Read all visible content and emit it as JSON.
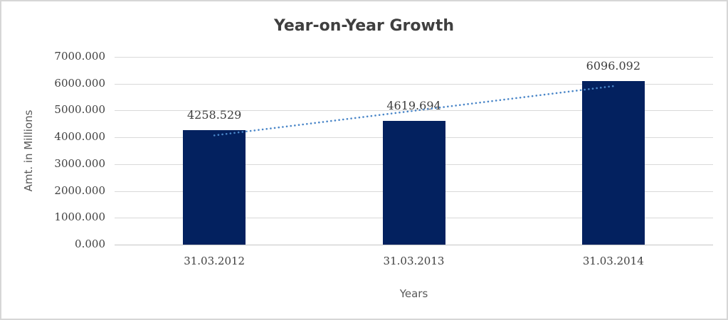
{
  "window": {
    "background": "#ffffff",
    "border_color": "#d6d6d6"
  },
  "chart_data": {
    "type": "bar",
    "title": "Year-on-Year Growth",
    "categories": [
      "31.03.2012",
      "31.03.2013",
      "31.03.2014"
    ],
    "values": [
      4258.529,
      4619.694,
      6096.092
    ],
    "data_labels": [
      "4258.529",
      "4619.694",
      "6096.092"
    ],
    "xlabel": "Years",
    "ylabel": "Amt. in Millions",
    "ylim": [
      0,
      7000
    ],
    "ytick_step": 1000,
    "ytick_labels": [
      "0.000",
      "1000.000",
      "2000.000",
      "3000.000",
      "4000.000",
      "5000.000",
      "6000.000",
      "7000.000"
    ],
    "grid": true,
    "legend": "none",
    "bar_color": "#03215f",
    "gridline_color": "#d9d9d9",
    "trendline": {
      "type": "linear",
      "style": "dotted",
      "color": "#4a86c8"
    }
  }
}
